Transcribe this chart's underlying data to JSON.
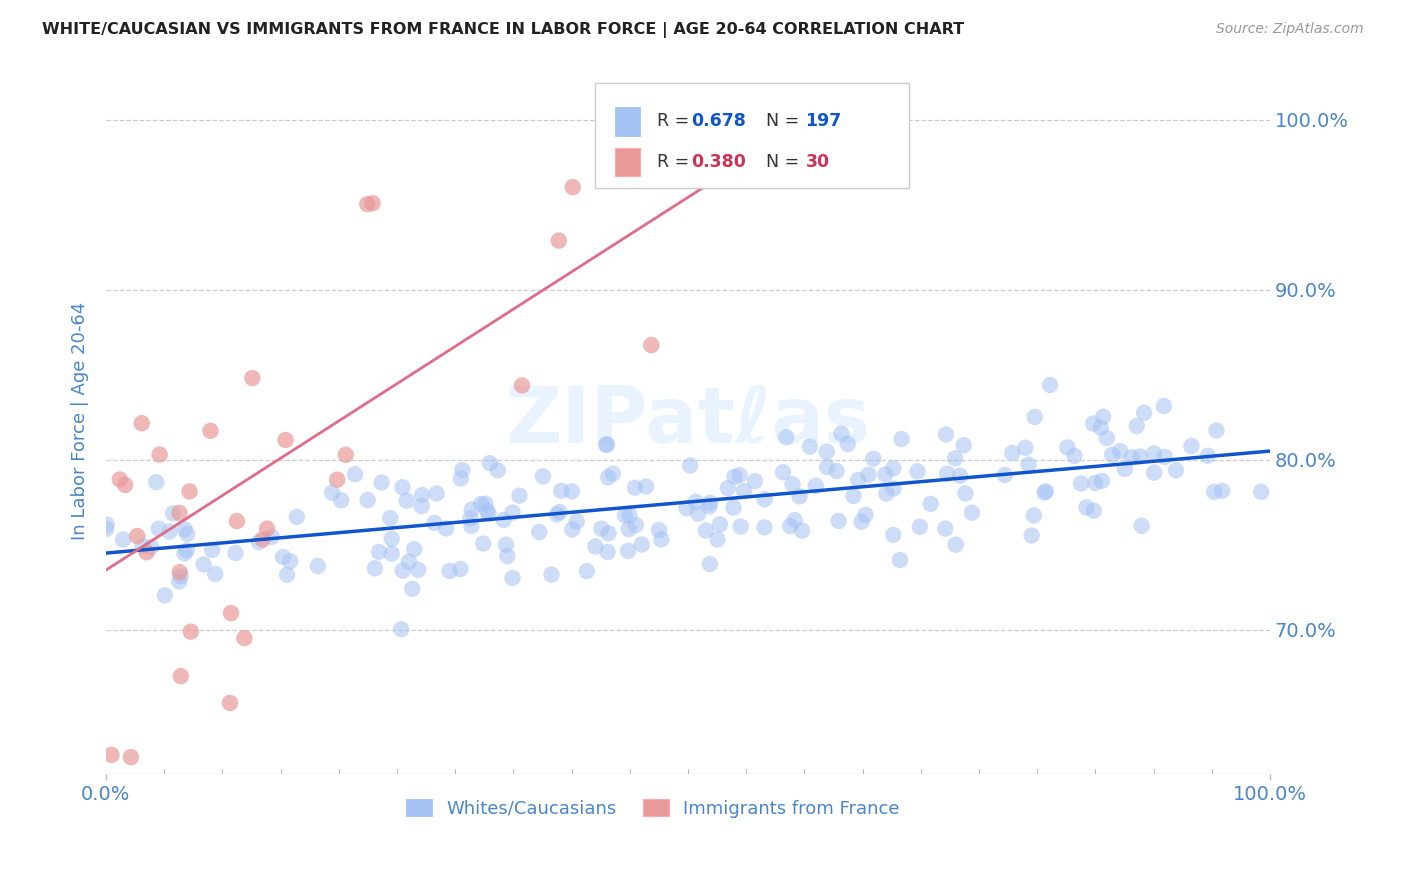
{
  "title": "WHITE/CAUCASIAN VS IMMIGRANTS FROM FRANCE IN LABOR FORCE | AGE 20-64 CORRELATION CHART",
  "source": "Source: ZipAtlas.com",
  "ylabel": "In Labor Force | Age 20-64",
  "watermark": "ZIPatℓas",
  "blue_R": 0.678,
  "blue_N": 197,
  "pink_R": 0.38,
  "pink_N": 30,
  "blue_color": "#a4c2f4",
  "pink_color": "#ea9999",
  "blue_line_color": "#1155cc",
  "pink_line_color": "#e06c8a",
  "legend_label_blue": "Whites/Caucasians",
  "legend_label_pink": "Immigrants from France",
  "axis_color": "#4a86c8",
  "grid_color": "#cccccc",
  "background_color": "#ffffff",
  "blue_trend_x": [
    0.0,
    1.0
  ],
  "blue_trend_y": [
    0.745,
    0.805
  ],
  "pink_trend_x": [
    0.0,
    0.65
  ],
  "pink_trend_y": [
    0.735,
    1.02
  ],
  "xlim": [
    0.0,
    1.0
  ],
  "ylim": [
    0.615,
    1.03
  ],
  "y_ticks": [
    0.7,
    0.8,
    0.9,
    1.0
  ],
  "y_tick_labels": [
    "70.0%",
    "80.0%",
    "90.0%",
    "100.0%"
  ]
}
